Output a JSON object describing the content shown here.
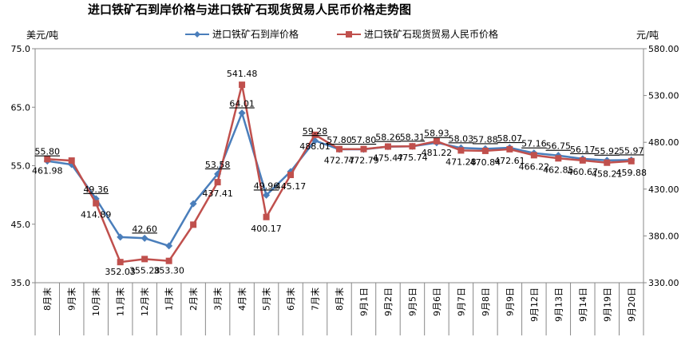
{
  "chart_data": {
    "type": "line",
    "title": "进口铁矿石到岸价格与进口铁矿石现货贸易人民币价格走势图",
    "ylabel_left": "美元/吨",
    "ylabel_right": "元/吨",
    "ylim_left": [
      35,
      75
    ],
    "yticks_left": [
      "35.0",
      "45.0",
      "55.0",
      "65.0",
      "75.0"
    ],
    "ylim_right": [
      330,
      580
    ],
    "yticks_right": [
      "330.00",
      "380.00",
      "430.00",
      "480.00",
      "530.00",
      "580.00"
    ],
    "legend_position": "top",
    "categories": [
      "8月末",
      "9月末",
      "10月末",
      "11月末",
      "12月末",
      "1月末",
      "2月末",
      "3月末",
      "4月末",
      "5月末",
      "6月末",
      "7月末",
      "8月末",
      "9月1日",
      "9月2日",
      "9月5日",
      "9月6日",
      "9月7日",
      "9月8日",
      "9月9日",
      "9月12日",
      "9月13日",
      "9月14日",
      "9月19日",
      "9月20日"
    ],
    "series": [
      {
        "name": "进口铁矿石到岸价格",
        "axis": "left",
        "color": "#4A7EBB",
        "marker": "diamond",
        "values": [
          55.8,
          55.2,
          49.36,
          42.8,
          42.6,
          41.3,
          48.5,
          53.58,
          64.01,
          49.96,
          54.0,
          59.28,
          57.8,
          57.8,
          58.26,
          58.31,
          58.93,
          58.03,
          57.88,
          58.07,
          57.16,
          56.75,
          56.17,
          55.92,
          55.97
        ],
        "labels": [
          "55.80",
          "",
          "49.36",
          "",
          "42.60",
          "",
          "",
          "53.58",
          "64.01",
          "49.96",
          "",
          "59.28",
          "57.80",
          "57.80",
          "58.26",
          "58.31",
          "58.93",
          "58.03",
          "57.88",
          "58.07",
          "57.16",
          "56.75",
          "56.17",
          "55.92",
          "55.97"
        ]
      },
      {
        "name": "进口铁矿石现货贸易人民币价格",
        "axis": "right",
        "color": "#C0504D",
        "marker": "square",
        "values": [
          461.98,
          460.5,
          414.89,
          352.03,
          355.28,
          353.3,
          392.0,
          437.41,
          541.48,
          400.17,
          445.17,
          488.01,
          472.77,
          472.79,
          475.47,
          475.74,
          481.22,
          471.28,
          470.84,
          472.61,
          466.22,
          462.85,
          460.67,
          458.21,
          459.88
        ],
        "labels": [
          "461.98",
          "",
          "414.89",
          "352.03",
          "355.28",
          "353.30",
          "",
          "437.41",
          "541.48",
          "400.17",
          "445.17",
          "488.01",
          "472.77",
          "472.79",
          "475.47",
          "475.74",
          "481.22",
          "471.28",
          "470.84",
          "472.61",
          "466.22",
          "462.85",
          "460.67",
          "458.21",
          "459.88"
        ]
      }
    ]
  }
}
